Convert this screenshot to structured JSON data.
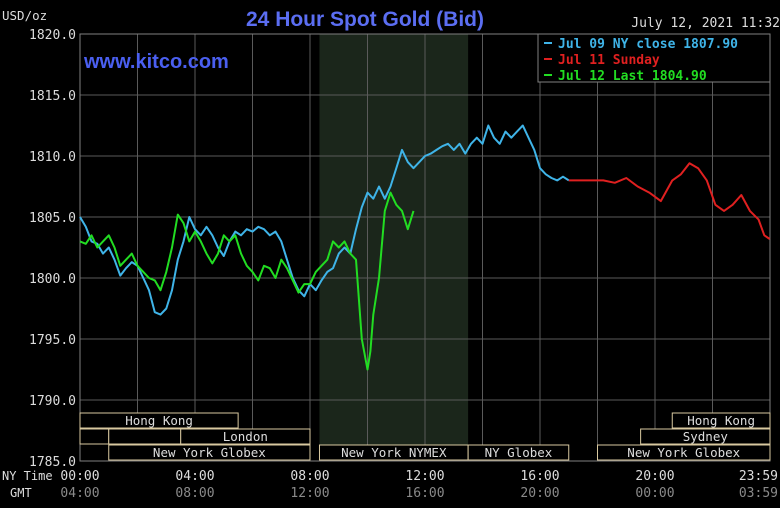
{
  "chart_data": {
    "type": "line",
    "title": "24 Hour Spot Gold (Bid)",
    "watermark": "www.kitco.com",
    "timestamp": "July 12, 2021 11:32",
    "ylabel": "USD/oz",
    "ylim": [
      1785.0,
      1820.0
    ],
    "yticks": [
      "1820.0",
      "1815.0",
      "1810.0",
      "1805.0",
      "1800.0",
      "1795.0",
      "1790.0",
      "1785.0"
    ],
    "x_row_labels": {
      "ny": "NY Time",
      "gmt": "GMT"
    },
    "xticks_ny": [
      "00:00",
      "04:00",
      "08:00",
      "12:00",
      "16:00",
      "20:00",
      "23:59"
    ],
    "xticks_gmt": [
      "04:00",
      "08:00",
      "12:00",
      "16:00",
      "20:00",
      "00:00",
      "03:59"
    ],
    "grid": true,
    "shaded_region_ny_hours": [
      8.33,
      13.5
    ],
    "sessions": [
      {
        "label": "Hong Kong",
        "start": 0.0,
        "end": 5.5,
        "row": 0
      },
      {
        "label": "Hong Kong",
        "start": 20.6,
        "end": 24.0,
        "row": 0
      },
      {
        "label": "London",
        "start": 3.5,
        "end": 8.0,
        "row": 1
      },
      {
        "label": "",
        "start": 0.0,
        "end": 1.0,
        "row": 1
      },
      {
        "label": "",
        "start": 1.0,
        "end": 3.5,
        "row": 1
      },
      {
        "label": "Sydney",
        "start": 19.5,
        "end": 24.0,
        "row": 1
      },
      {
        "label": "New York Globex",
        "start": 1.0,
        "end": 8.0,
        "row": 2
      },
      {
        "label": "New York NYMEX",
        "start": 8.33,
        "end": 13.5,
        "row": 2
      },
      {
        "label": "NY Globex",
        "start": 13.5,
        "end": 17.0,
        "row": 2
      },
      {
        "label": "New York Globex",
        "start": 18.0,
        "end": 24.0,
        "row": 2
      }
    ],
    "legend": [
      {
        "label": "Jul 09 NY close 1807.90",
        "color": "#3fb4e8"
      },
      {
        "label": "Jul 11 Sunday",
        "color": "#e02020"
      },
      {
        "label": "Jul 12 Last 1804.90",
        "color": "#22dd22"
      }
    ],
    "series": [
      {
        "name": "Jul 09 NY close 1807.90",
        "color": "#3fb4e8",
        "x": [
          0,
          0.2,
          0.4,
          0.6,
          0.8,
          1.0,
          1.2,
          1.4,
          1.6,
          1.8,
          2.0,
          2.2,
          2.4,
          2.6,
          2.8,
          3.0,
          3.2,
          3.4,
          3.6,
          3.8,
          4.0,
          4.2,
          4.4,
          4.6,
          4.8,
          5.0,
          5.2,
          5.4,
          5.6,
          5.8,
          6.0,
          6.2,
          6.4,
          6.6,
          6.8,
          7.0,
          7.2,
          7.4,
          7.6,
          7.8,
          8.0,
          8.2,
          8.4,
          8.6,
          8.8,
          9.0,
          9.2,
          9.4,
          9.6,
          9.8,
          10.0,
          10.2,
          10.4,
          10.6,
          10.8,
          11.0,
          11.2,
          11.4,
          11.6,
          11.8,
          12.0,
          12.2,
          12.4,
          12.6,
          12.8,
          13.0,
          13.2,
          13.4,
          13.6,
          13.8,
          14.0,
          14.2,
          14.4,
          14.6,
          14.8,
          15.0,
          15.2,
          15.4,
          15.6,
          15.8,
          16.0,
          16.2,
          16.4,
          16.6,
          16.8,
          17.0
        ],
        "values": [
          1805.0,
          1804.2,
          1803.0,
          1802.8,
          1802.0,
          1802.5,
          1801.5,
          1800.2,
          1800.8,
          1801.3,
          1801.0,
          1800.0,
          1799.0,
          1797.2,
          1797.0,
          1797.5,
          1799.0,
          1801.5,
          1803.0,
          1805.0,
          1804.0,
          1803.5,
          1804.2,
          1803.5,
          1802.5,
          1801.8,
          1803.0,
          1803.8,
          1803.5,
          1804.0,
          1803.8,
          1804.2,
          1804.0,
          1803.5,
          1803.8,
          1803.0,
          1801.5,
          1800.0,
          1799.0,
          1798.5,
          1799.5,
          1799.0,
          1799.8,
          1800.5,
          1800.8,
          1802.0,
          1802.5,
          1802.0,
          1804.0,
          1805.8,
          1807.0,
          1806.5,
          1807.5,
          1806.5,
          1807.5,
          1809.0,
          1810.5,
          1809.5,
          1809.0,
          1809.5,
          1810.0,
          1810.2,
          1810.5,
          1810.8,
          1811.0,
          1810.5,
          1811.0,
          1810.2,
          1811.0,
          1811.5,
          1811.0,
          1812.5,
          1811.5,
          1811.0,
          1812.0,
          1811.5,
          1812.0,
          1812.5,
          1811.5,
          1810.5,
          1809.0,
          1808.5,
          1808.2,
          1808.0,
          1808.3,
          1808.0
        ]
      },
      {
        "name": "Jul 11 Sunday",
        "color": "#e02020",
        "x": [
          17.0,
          17.4,
          17.8,
          18.2,
          18.6,
          19.0,
          19.4,
          19.8,
          20.2,
          20.6,
          20.9,
          21.2,
          21.5,
          21.8,
          22.1,
          22.4,
          22.7,
          23.0,
          23.3,
          23.6,
          23.8,
          23.99
        ],
        "values": [
          1808.0,
          1808.0,
          1808.0,
          1808.0,
          1807.8,
          1808.2,
          1807.5,
          1807.0,
          1806.3,
          1808.0,
          1808.5,
          1809.4,
          1809.0,
          1808.0,
          1806.0,
          1805.5,
          1806.0,
          1806.8,
          1805.5,
          1804.8,
          1803.5,
          1803.2
        ]
      },
      {
        "name": "Jul 12 Last 1804.90",
        "color": "#22dd22",
        "x": [
          0,
          0.2,
          0.4,
          0.6,
          0.8,
          1.0,
          1.2,
          1.4,
          1.6,
          1.8,
          2.0,
          2.2,
          2.4,
          2.6,
          2.8,
          3.0,
          3.2,
          3.4,
          3.6,
          3.8,
          4.0,
          4.2,
          4.4,
          4.6,
          4.8,
          5.0,
          5.2,
          5.4,
          5.6,
          5.8,
          6.0,
          6.2,
          6.4,
          6.6,
          6.8,
          7.0,
          7.2,
          7.4,
          7.6,
          7.8,
          8.0,
          8.2,
          8.4,
          8.6,
          8.8,
          9.0,
          9.2,
          9.4,
          9.6,
          9.8,
          10.0,
          10.1,
          10.2,
          10.4,
          10.6,
          10.8,
          11.0,
          11.2,
          11.4,
          11.6
        ],
        "values": [
          1803.0,
          1802.8,
          1803.5,
          1802.5,
          1803.0,
          1803.5,
          1802.5,
          1801.0,
          1801.5,
          1802.0,
          1801.0,
          1800.5,
          1800.0,
          1799.8,
          1799.0,
          1800.5,
          1802.5,
          1805.2,
          1804.5,
          1803.0,
          1803.8,
          1803.0,
          1802.0,
          1801.2,
          1802.0,
          1803.5,
          1803.0,
          1803.5,
          1802.0,
          1801.0,
          1800.5,
          1799.8,
          1801.0,
          1800.8,
          1800.0,
          1801.5,
          1800.8,
          1799.8,
          1798.8,
          1799.5,
          1799.5,
          1800.5,
          1801.0,
          1801.5,
          1803.0,
          1802.5,
          1803.0,
          1802.0,
          1801.5,
          1795.0,
          1792.5,
          1794.0,
          1797.0,
          1800.0,
          1805.5,
          1807.0,
          1806.0,
          1805.5,
          1804.0,
          1805.5
        ]
      }
    ]
  }
}
